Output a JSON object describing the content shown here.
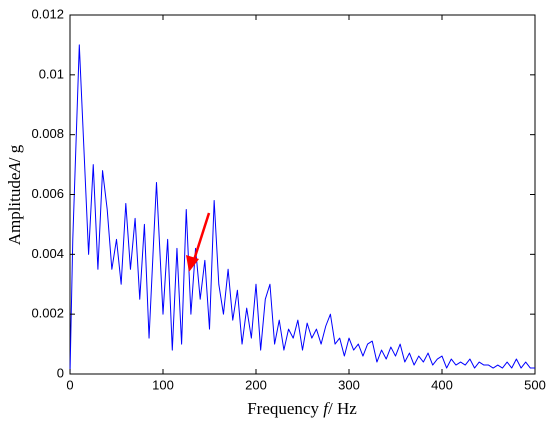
{
  "chart_data": {
    "type": "line",
    "xlabel": [
      "Frequency ",
      "f",
      "/ Hz"
    ],
    "ylabel": [
      "Amplitude",
      "A",
      "/ g"
    ],
    "color": "#0000ff",
    "xlim": [
      0,
      500
    ],
    "xticks": [
      0,
      100,
      200,
      300,
      400,
      500
    ],
    "ylim": [
      0,
      0.012
    ],
    "yticks": [
      0,
      0.002,
      0.004,
      0.006,
      0.008,
      0.01,
      0.012
    ],
    "x": [
      0,
      3,
      10,
      15,
      20,
      25,
      30,
      35,
      40,
      45,
      50,
      55,
      60,
      65,
      70,
      75,
      80,
      85,
      90,
      93,
      100,
      105,
      110,
      115,
      120,
      125,
      130,
      135,
      140,
      145,
      150,
      155,
      160,
      165,
      170,
      175,
      180,
      185,
      190,
      195,
      200,
      205,
      210,
      215,
      220,
      225,
      230,
      235,
      240,
      245,
      250,
      255,
      260,
      265,
      270,
      275,
      280,
      285,
      290,
      295,
      300,
      305,
      310,
      315,
      320,
      325,
      330,
      335,
      340,
      345,
      350,
      355,
      360,
      365,
      370,
      375,
      380,
      385,
      390,
      395,
      400,
      405,
      410,
      415,
      420,
      425,
      430,
      435,
      440,
      445,
      450,
      455,
      460,
      465,
      470,
      475,
      480,
      485,
      490,
      495,
      500
    ],
    "values": [
      0,
      0.0045,
      0.011,
      0.0075,
      0.004,
      0.007,
      0.0035,
      0.0068,
      0.0055,
      0.0035,
      0.0045,
      0.003,
      0.0057,
      0.0035,
      0.0052,
      0.0025,
      0.005,
      0.0012,
      0.0045,
      0.0064,
      0.002,
      0.0045,
      0.0008,
      0.0042,
      0.001,
      0.0055,
      0.002,
      0.0042,
      0.0025,
      0.0038,
      0.0015,
      0.0058,
      0.003,
      0.002,
      0.0035,
      0.0018,
      0.0028,
      0.001,
      0.0022,
      0.0012,
      0.003,
      0.0008,
      0.0025,
      0.003,
      0.001,
      0.0018,
      0.0008,
      0.0015,
      0.0012,
      0.0018,
      0.0008,
      0.0017,
      0.0012,
      0.0015,
      0.001,
      0.0016,
      0.002,
      0.001,
      0.0012,
      0.0006,
      0.0012,
      0.0008,
      0.001,
      0.0006,
      0.001,
      0.0011,
      0.0004,
      0.0008,
      0.0005,
      0.0009,
      0.0006,
      0.001,
      0.0004,
      0.0007,
      0.0003,
      0.0006,
      0.0004,
      0.0007,
      0.0003,
      0.0005,
      0.0006,
      0.0002,
      0.0005,
      0.0003,
      0.0004,
      0.0003,
      0.0005,
      0.0002,
      0.0004,
      0.0003,
      0.0003,
      0.0002,
      0.0003,
      0.0002,
      0.0004,
      0.0002,
      0.0005,
      0.0002,
      0.0004,
      0.0002,
      0.0002
    ]
  }
}
